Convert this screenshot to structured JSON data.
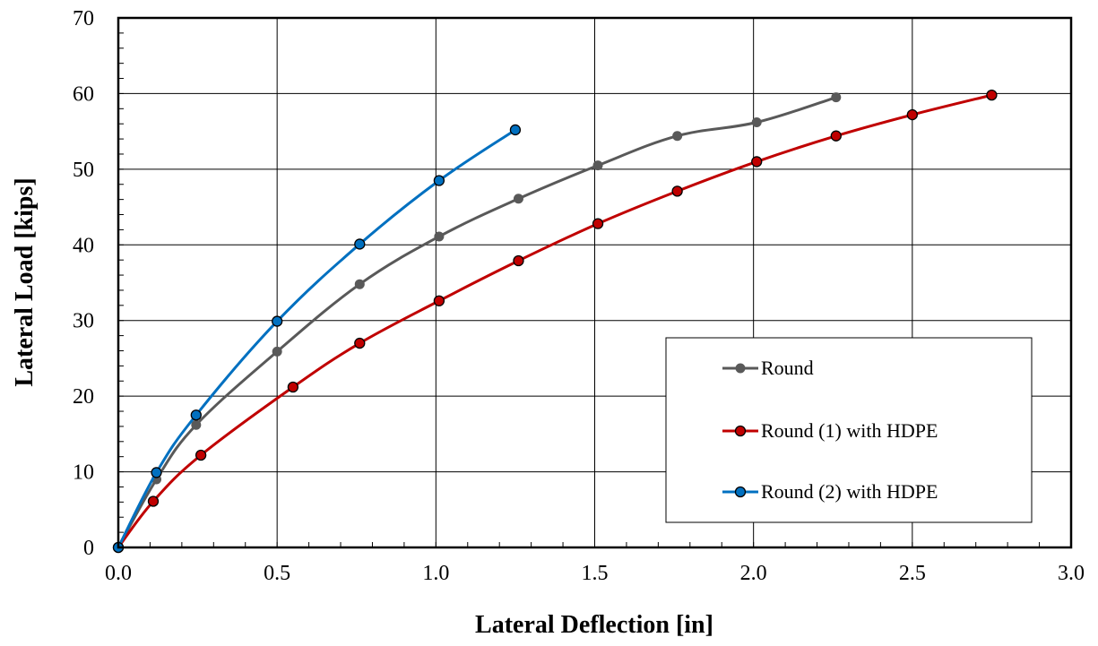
{
  "chart_data": {
    "type": "line",
    "title": "",
    "xlabel": "Lateral Deflection [in]",
    "ylabel": "Lateral Load [kips]",
    "xlim": [
      0,
      3.0
    ],
    "ylim": [
      0,
      70
    ],
    "x_ticks": [
      "0.0",
      "0.5",
      "1.0",
      "1.5",
      "2.0",
      "2.5",
      "3.0"
    ],
    "y_ticks": [
      "0",
      "10",
      "20",
      "30",
      "40",
      "50",
      "60",
      "70"
    ],
    "x_tick_values": [
      0,
      0.5,
      1.0,
      1.5,
      2.0,
      2.5,
      3.0
    ],
    "y_tick_values": [
      0,
      10,
      20,
      30,
      40,
      50,
      60,
      70
    ],
    "grid": true,
    "legend_position": "bottom-right",
    "series": [
      {
        "name": "Round",
        "color": "#595959",
        "x": [
          0,
          0.12,
          0.245,
          0.5,
          0.76,
          1.01,
          1.26,
          1.51,
          1.76,
          2.01,
          2.26
        ],
        "y": [
          0,
          9.0,
          16.2,
          25.9,
          34.8,
          41.1,
          46.1,
          50.5,
          54.4,
          56.2,
          59.5
        ]
      },
      {
        "name": "Round (1) with HDPE",
        "color": "#c00000",
        "x": [
          0,
          0.11,
          0.26,
          0.55,
          0.76,
          1.01,
          1.26,
          1.51,
          1.76,
          2.01,
          2.26,
          2.5,
          2.75
        ],
        "y": [
          0,
          6.1,
          12.2,
          21.2,
          27.0,
          32.6,
          37.9,
          42.8,
          47.1,
          51.0,
          54.4,
          57.2,
          59.8
        ]
      },
      {
        "name": "Round (2) with HDPE",
        "color": "#0070c0",
        "x": [
          0,
          0.12,
          0.245,
          0.5,
          0.76,
          1.01,
          1.25
        ],
        "y": [
          0,
          9.9,
          17.5,
          29.9,
          40.1,
          48.5,
          55.2
        ]
      }
    ]
  }
}
